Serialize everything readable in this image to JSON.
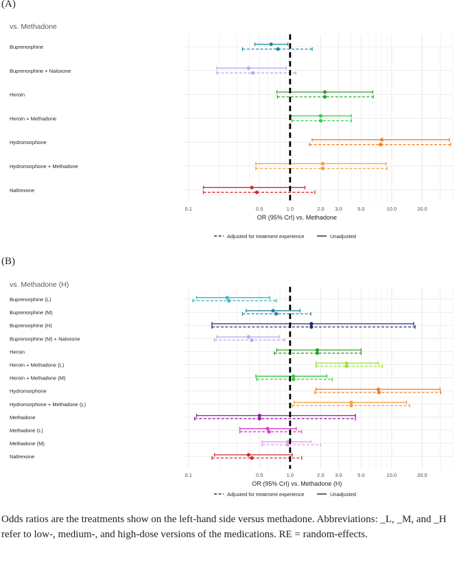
{
  "panel_a_label": "(A)",
  "panel_b_label": "(B)",
  "caption": "Odds ratios are the treatments show on the left-hand side versus methadone. Abbreviations: _L, _M, and _H refer to low-, medium-, and high-dose versions of the medications. RE = random-effects.",
  "colors": {
    "grid": "#ebebeb",
    "axis_text": "#4d4d4d",
    "title_text": "#595959",
    "reference_line": "#000000"
  },
  "chart_data": [
    {
      "type": "forest",
      "panel": "(A)",
      "title": "vs. Methadone",
      "xlabel": "OR (95% CrI) vs. Methadone",
      "xscale": "log",
      "xlim": [
        0.09,
        40
      ],
      "xticks": [
        0.1,
        0.5,
        1.0,
        2.0,
        3.0,
        5.0,
        10.0,
        20.0
      ],
      "xtick_labels": [
        "0.1",
        "0.5",
        "1.0",
        "2.0",
        "3.0",
        "5.0",
        "10.0",
        "20.0"
      ],
      "reference_line": 1.0,
      "legend": {
        "position": "bottom",
        "dashed": "Adjusted for treatment experience",
        "solid": "Unadjusted"
      },
      "rows": [
        {
          "label": "Buprenorphine",
          "color": "#1b8aa0",
          "unadjusted": {
            "or": 0.65,
            "lo": 0.45,
            "hi": 0.95
          },
          "adjusted": {
            "or": 0.76,
            "lo": 0.34,
            "hi": 1.65
          }
        },
        {
          "label": "Buprenorphine + Naloxone",
          "color": "#b4abee",
          "unadjusted": {
            "or": 0.39,
            "lo": 0.19,
            "hi": 0.92
          },
          "adjusted": {
            "or": 0.43,
            "lo": 0.19,
            "hi": 1.14
          }
        },
        {
          "label": "Heroin",
          "color": "#2ca02c",
          "unadjusted": {
            "or": 2.2,
            "lo": 0.74,
            "hi": 6.5
          },
          "adjusted": {
            "or": 2.2,
            "lo": 0.75,
            "hi": 6.6
          }
        },
        {
          "label": "Heroin + Methadone",
          "color": "#2ecc40",
          "unadjusted": {
            "or": 2.0,
            "lo": 1.03,
            "hi": 4.0
          },
          "adjusted": {
            "or": 2.0,
            "lo": 1.04,
            "hi": 4.0
          }
        },
        {
          "label": "Hydromorphone",
          "color": "#f57c1f",
          "unadjusted": {
            "or": 8.0,
            "lo": 1.65,
            "hi": 37.0
          },
          "adjusted": {
            "or": 7.8,
            "lo": 1.55,
            "hi": 38.0
          }
        },
        {
          "label": "Hydromorphone + Methadone",
          "color": "#f5a03c",
          "unadjusted": {
            "or": 2.1,
            "lo": 0.46,
            "hi": 8.8
          },
          "adjusted": {
            "or": 2.1,
            "lo": 0.46,
            "hi": 9.0
          }
        },
        {
          "label": "Naltrexone",
          "color": "#d62728",
          "unadjusted": {
            "or": 0.42,
            "lo": 0.14,
            "hi": 1.4
          },
          "adjusted": {
            "or": 0.47,
            "lo": 0.14,
            "hi": 1.75
          }
        }
      ]
    },
    {
      "type": "forest",
      "panel": "(B)",
      "title": "vs. Methadone (H)",
      "xlabel": "OR (95% CrI) vs. Methadone (H)",
      "xscale": "log",
      "xlim": [
        0.09,
        40
      ],
      "xticks": [
        0.1,
        0.5,
        1.0,
        2.0,
        3.0,
        5.0,
        10.0,
        20.0
      ],
      "xtick_labels": [
        "0.1",
        "0.5",
        "1.0",
        "2.0",
        "3.0",
        "5.0",
        "10.0",
        "20.0"
      ],
      "reference_line": 1.0,
      "legend": {
        "position": "bottom",
        "dashed": "Adjusted for treatment experience",
        "solid": "Unadjusted"
      },
      "rows": [
        {
          "label": "Buprenorphine (L)",
          "color": "#41b6c4",
          "unadjusted": {
            "or": 0.24,
            "lo": 0.12,
            "hi": 0.63
          },
          "adjusted": {
            "or": 0.25,
            "lo": 0.11,
            "hi": 0.73
          }
        },
        {
          "label": "Buprenorphine (M)",
          "color": "#1b8aa0",
          "unadjusted": {
            "or": 0.68,
            "lo": 0.37,
            "hi": 1.25
          },
          "adjusted": {
            "or": 0.73,
            "lo": 0.34,
            "hi": 1.6
          }
        },
        {
          "label": "Buprenorphine (H)",
          "color": "#1f2d6b",
          "unadjusted": {
            "or": 1.62,
            "lo": 0.17,
            "hi": 16.5
          },
          "adjusted": {
            "or": 1.62,
            "lo": 0.17,
            "hi": 17.0
          }
        },
        {
          "label": "Buprenorphine (M) + Naloxone",
          "color": "#b4abee",
          "unadjusted": {
            "or": 0.39,
            "lo": 0.19,
            "hi": 0.78
          },
          "adjusted": {
            "or": 0.42,
            "lo": 0.18,
            "hi": 0.88
          }
        },
        {
          "label": "Heroin",
          "color": "#2ca02c",
          "unadjusted": {
            "or": 1.85,
            "lo": 0.74,
            "hi": 5.0
          },
          "adjusted": {
            "or": 1.85,
            "lo": 0.7,
            "hi": 5.0
          }
        },
        {
          "label": "Heroin + Methadone (L)",
          "color": "#9ae834",
          "unadjusted": {
            "or": 3.6,
            "lo": 1.8,
            "hi": 7.4
          },
          "adjusted": {
            "or": 3.6,
            "lo": 1.8,
            "hi": 8.1
          }
        },
        {
          "label": "Heroin + Methadone (M)",
          "color": "#2ecc40",
          "unadjusted": {
            "or": 1.08,
            "lo": 0.46,
            "hi": 2.3
          },
          "adjusted": {
            "or": 1.08,
            "lo": 0.47,
            "hi": 2.6
          }
        },
        {
          "label": "Hydromorphone",
          "color": "#f57c1f",
          "unadjusted": {
            "or": 7.4,
            "lo": 1.8,
            "hi": 30.0
          },
          "adjusted": {
            "or": 7.5,
            "lo": 1.75,
            "hi": 30.5
          }
        },
        {
          "label": "Hydromorphone + Methadone (L)",
          "color": "#f5a03c",
          "unadjusted": {
            "or": 4.0,
            "lo": 1.1,
            "hi": 14.0
          },
          "adjusted": {
            "or": 4.0,
            "lo": 1.05,
            "hi": 15.0
          }
        },
        {
          "label": "Methadone",
          "color": "#8e1f9e",
          "unadjusted": {
            "or": 0.5,
            "lo": 0.12,
            "hi": 4.4
          },
          "adjusted": {
            "or": 0.5,
            "lo": 0.115,
            "hi": 4.4
          }
        },
        {
          "label": "Methadone (L)",
          "color": "#d63fc8",
          "unadjusted": {
            "or": 0.6,
            "lo": 0.32,
            "hi": 1.15
          },
          "adjusted": {
            "or": 0.62,
            "lo": 0.32,
            "hi": 1.3
          }
        },
        {
          "label": "Methadone (M)",
          "color": "#e2a2e8",
          "unadjusted": {
            "or": 0.95,
            "lo": 0.53,
            "hi": 1.6
          },
          "adjusted": {
            "or": 0.95,
            "lo": 0.53,
            "hi": 2.0
          }
        },
        {
          "label": "Naltrexone",
          "color": "#d62728",
          "unadjusted": {
            "or": 0.39,
            "lo": 0.18,
            "hi": 1.05
          },
          "adjusted": {
            "or": 0.42,
            "lo": 0.17,
            "hi": 1.3
          }
        }
      ]
    }
  ]
}
